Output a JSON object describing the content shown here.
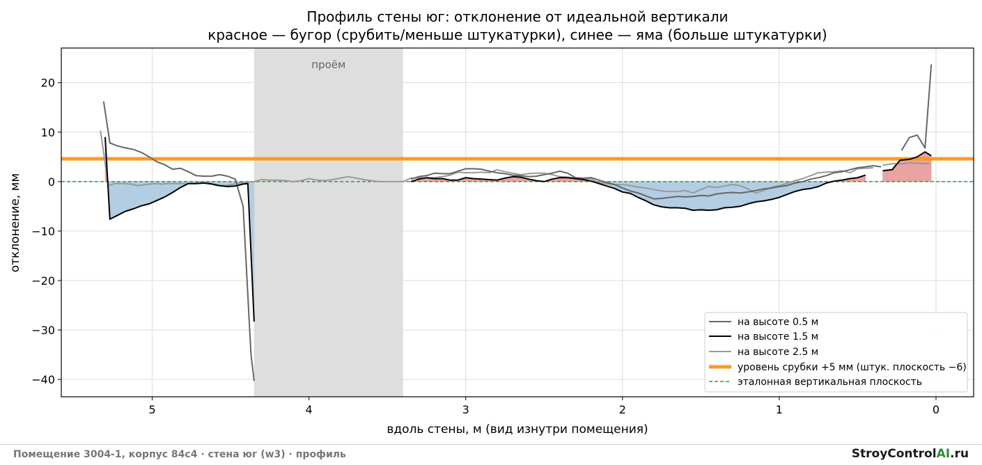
{
  "chart_data": {
    "type": "line",
    "title": "Профиль стены юг: отклонение от идеальной вертикали",
    "subtitle": "красное — бугор (срубить/меньше штукатурки), синее — яма (больше штукатурки)",
    "xlabel": "вдоль стены, м (вид изнутри помещения)",
    "ylabel": "отклонение, мм",
    "x_reversed": true,
    "xlim": [
      5.58,
      -0.24
    ],
    "ylim": [
      -43.5,
      27
    ],
    "xticks": [
      5,
      4,
      3,
      2,
      1,
      0
    ],
    "yticks": [
      20,
      10,
      0,
      -10,
      -20,
      -30,
      -40
    ],
    "tick_labels_y": [
      "20",
      "10",
      "0",
      "−10",
      "−20",
      "−30",
      "−40"
    ],
    "grid": true,
    "opening": {
      "x_from": 4.35,
      "x_to": 3.4,
      "label": "проём"
    },
    "reference_line": {
      "y": 0,
      "name": "эталонная вертикальная плоскость",
      "color": "#2ca02c"
    },
    "cut_level": {
      "y": 4.6,
      "name": "уровень срубки +5 мм (штук. плоскость −6)",
      "color": "#ff9a1f"
    },
    "fill_colors": {
      "bump": "#e9a3a3",
      "pit": "#b3cde3"
    },
    "legend_position": "lower-right",
    "series": [
      {
        "name": "на высоте 0.5 м",
        "color": "#666666",
        "x": [
          5.31,
          5.27,
          5.22,
          5.17,
          5.12,
          5.07,
          5.02,
          4.97,
          4.92,
          4.87,
          4.82,
          4.77,
          4.72,
          4.67,
          4.62,
          4.57,
          4.52,
          4.47,
          4.42,
          4.37,
          4.35,
          null,
          3.35,
          3.3,
          3.25,
          3.2,
          3.15,
          3.1,
          3.05,
          3.0,
          2.95,
          2.9,
          2.85,
          2.8,
          2.75,
          2.7,
          2.65,
          2.6,
          2.55,
          2.5,
          2.45,
          2.4,
          2.35,
          2.3,
          2.25,
          2.2,
          2.15,
          2.1,
          2.05,
          2.0,
          1.95,
          1.9,
          1.85,
          1.8,
          1.75,
          1.7,
          1.65,
          1.6,
          1.55,
          1.5,
          1.45,
          1.4,
          1.35,
          1.3,
          1.25,
          1.2,
          1.15,
          1.1,
          1.05,
          1.0,
          0.95,
          0.9,
          0.85,
          0.8,
          0.75,
          0.7,
          0.65,
          0.6,
          0.55,
          0.5,
          0.45,
          0.4,
          0.35,
          null,
          0.22,
          0.17,
          0.12,
          0.07,
          0.03
        ],
        "y": [
          16.2,
          7.8,
          7.2,
          6.8,
          6.5,
          5.9,
          5.0,
          4.0,
          3.4,
          2.5,
          2.7,
          2.0,
          1.2,
          1.1,
          1.1,
          1.4,
          1.1,
          0.5,
          -5.0,
          -35.0,
          -40.3,
          null,
          0.5,
          1.0,
          1.2,
          1.7,
          1.6,
          1.6,
          2.1,
          2.6,
          2.6,
          2.5,
          2.1,
          1.8,
          1.6,
          1.3,
          1.2,
          1.0,
          1.1,
          1.4,
          1.7,
          2.1,
          1.7,
          0.8,
          0.7,
          0.8,
          0.3,
          -0.2,
          -0.6,
          -1.3,
          -1.9,
          -2.3,
          -2.9,
          -3.5,
          -3.4,
          -3.2,
          -3.0,
          -3.1,
          -3.0,
          -2.8,
          -2.9,
          -2.5,
          -2.3,
          -2.2,
          -2.3,
          -2.1,
          -1.8,
          -1.5,
          -1.3,
          -1.0,
          -0.8,
          -0.3,
          0.0,
          0.5,
          0.8,
          1.2,
          1.8,
          2.0,
          2.4,
          2.8,
          3.0,
          3.2,
          3.0,
          null,
          6.3,
          8.9,
          9.4,
          6.8,
          23.7
        ]
      },
      {
        "name": "на высоте 1.5 м",
        "color": "#000000",
        "x": [
          5.3,
          5.27,
          5.22,
          5.17,
          5.12,
          5.07,
          5.02,
          4.97,
          4.92,
          4.87,
          4.82,
          4.77,
          4.72,
          4.67,
          4.62,
          4.57,
          4.52,
          4.47,
          4.42,
          4.39,
          4.35,
          null,
          3.35,
          3.3,
          3.25,
          3.2,
          3.15,
          3.1,
          3.05,
          3.0,
          2.95,
          2.9,
          2.85,
          2.8,
          2.75,
          2.7,
          2.65,
          2.6,
          2.55,
          2.5,
          2.45,
          2.4,
          2.35,
          2.3,
          2.25,
          2.2,
          2.15,
          2.1,
          2.05,
          2.0,
          1.95,
          1.9,
          1.85,
          1.8,
          1.75,
          1.7,
          1.65,
          1.6,
          1.55,
          1.5,
          1.45,
          1.4,
          1.35,
          1.3,
          1.25,
          1.2,
          1.15,
          1.1,
          1.05,
          1.0,
          0.95,
          0.9,
          0.85,
          0.8,
          0.75,
          0.7,
          0.65,
          0.6,
          0.55,
          0.5,
          0.45,
          null,
          0.34,
          0.28,
          0.23,
          0.17,
          0.12,
          0.07,
          0.03
        ],
        "y": [
          9.0,
          -7.6,
          -6.8,
          -6.0,
          -5.5,
          -4.9,
          -4.5,
          -3.8,
          -3.1,
          -2.2,
          -1.2,
          -0.4,
          -0.4,
          -0.3,
          -0.5,
          -0.8,
          -1.0,
          -0.9,
          -0.5,
          -0.4,
          -28.3,
          null,
          0.0,
          0.5,
          0.8,
          0.6,
          0.6,
          0.3,
          0.3,
          0.8,
          0.6,
          0.5,
          0.4,
          0.3,
          0.7,
          1.0,
          0.9,
          0.5,
          0.2,
          0.0,
          0.5,
          0.8,
          0.8,
          0.6,
          0.4,
          0.1,
          -0.4,
          -0.9,
          -1.4,
          -2.1,
          -2.4,
          -3.2,
          -3.9,
          -4.7,
          -5.1,
          -5.3,
          -5.3,
          -5.4,
          -5.8,
          -5.7,
          -5.8,
          -5.7,
          -5.3,
          -5.2,
          -5.0,
          -4.5,
          -4.1,
          -3.9,
          -3.6,
          -3.2,
          -2.6,
          -2.0,
          -1.6,
          -1.4,
          -1.0,
          -0.3,
          0.1,
          0.3,
          0.6,
          0.8,
          1.3,
          null,
          2.2,
          2.4,
          4.3,
          4.5,
          5.0,
          6.0,
          5.2
        ]
      },
      {
        "name": "на высоте 2.5 м",
        "color": "#999999",
        "x": [
          5.33,
          5.28,
          5.24,
          5.19,
          5.14,
          5.09,
          5.04,
          4.99,
          4.94,
          4.89,
          4.84,
          4.79,
          4.74,
          4.69,
          4.64,
          4.59,
          4.54,
          4.49,
          4.44,
          4.39,
          4.35,
          4.3,
          4.25,
          4.2,
          4.15,
          4.1,
          4.05,
          4.0,
          3.95,
          3.9,
          3.85,
          3.8,
          3.75,
          3.7,
          3.65,
          3.6,
          3.55,
          3.5,
          3.45,
          3.4,
          3.35,
          3.3,
          3.25,
          3.2,
          3.15,
          3.1,
          3.05,
          3.0,
          2.95,
          2.9,
          2.85,
          2.8,
          2.75,
          2.7,
          2.65,
          2.6,
          2.55,
          2.5,
          2.45,
          2.4,
          2.35,
          2.3,
          2.25,
          2.2,
          2.15,
          2.1,
          2.05,
          2.0,
          1.95,
          1.9,
          1.85,
          1.8,
          1.75,
          1.7,
          1.65,
          1.6,
          1.55,
          1.5,
          1.45,
          1.4,
          1.35,
          1.3,
          1.25,
          1.2,
          1.15,
          1.1,
          1.05,
          1.0,
          0.95,
          0.9,
          0.85,
          0.8,
          0.75,
          0.7,
          0.65,
          0.6,
          0.55,
          0.5,
          0.45,
          0.4,
          null,
          0.34,
          0.28,
          0.22,
          0.16,
          0.1,
          0.04
        ],
        "y": [
          10.3,
          -0.8,
          -0.4,
          -0.4,
          -0.5,
          -0.8,
          -0.6,
          -0.4,
          -0.5,
          -0.4,
          -0.4,
          -0.4,
          -0.4,
          -0.2,
          -0.2,
          -0.8,
          -0.8,
          -0.6,
          -0.3,
          -0.1,
          0.0,
          0.4,
          0.3,
          0.3,
          0.2,
          0.0,
          0.2,
          0.6,
          0.3,
          0.2,
          0.4,
          0.7,
          1.0,
          0.7,
          0.4,
          0.2,
          0.0,
          0.0,
          0.0,
          0.0,
          0.7,
          0.8,
          0.7,
          0.8,
          1.0,
          1.3,
          1.9,
          1.8,
          1.8,
          1.9,
          1.8,
          2.4,
          2.0,
          1.7,
          1.4,
          1.6,
          1.7,
          1.7,
          1.4,
          1.0,
          0.9,
          0.7,
          0.6,
          0.5,
          -0.2,
          -0.4,
          -0.6,
          -0.6,
          -0.8,
          -1.1,
          -1.3,
          -1.6,
          -1.9,
          -2.0,
          -2.0,
          -1.8,
          -2.3,
          -1.6,
          -1.0,
          -1.2,
          -0.9,
          -0.6,
          -0.8,
          -1.5,
          -2.3,
          -1.8,
          -1.2,
          -0.8,
          -0.4,
          0.2,
          0.6,
          1.2,
          1.8,
          1.9,
          2.0,
          2.2,
          1.8,
          2.6,
          2.7,
          2.8,
          null,
          3.3,
          3.6,
          3.6,
          3.8,
          3.7,
          3.6
        ]
      }
    ]
  },
  "footer": {
    "caption": "Помещение 3004-1, корпус 84с4 · стена юг (w3) · профиль",
    "brand_main": "StroyControl",
    "brand_ai": "AI",
    "brand_tld": ".ru"
  }
}
